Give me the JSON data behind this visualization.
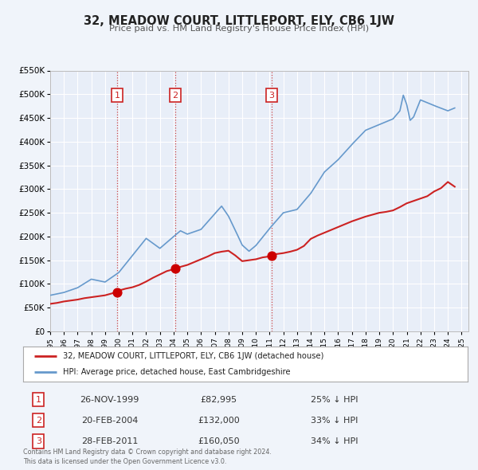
{
  "title": "32, MEADOW COURT, LITTLEPORT, ELY, CB6 1JW",
  "subtitle": "Price paid vs. HM Land Registry's House Price Index (HPI)",
  "background_color": "#f0f4fa",
  "plot_background": "#e8eef8",
  "ylim": [
    0,
    550000
  ],
  "yticks": [
    0,
    50000,
    100000,
    150000,
    200000,
    250000,
    300000,
    350000,
    400000,
    450000,
    500000,
    550000
  ],
  "ytick_labels": [
    "£0",
    "£50K",
    "£100K",
    "£150K",
    "£200K",
    "£250K",
    "£300K",
    "£350K",
    "£400K",
    "£450K",
    "£500K",
    "£550K"
  ],
  "xmin": 1995.0,
  "xmax": 2025.5,
  "hpi_color": "#6699cc",
  "price_color": "#cc2222",
  "sale_marker_color": "#cc0000",
  "sale_dot_size": 60,
  "vline_color": "#cc4444",
  "grid_color": "#ffffff",
  "legend_label_price": "32, MEADOW COURT, LITTLEPORT, ELY, CB6 1JW (detached house)",
  "legend_label_hpi": "HPI: Average price, detached house, East Cambridgeshire",
  "sales": [
    {
      "num": 1,
      "date": 1999.9,
      "price": 82995
    },
    {
      "num": 2,
      "date": 2004.13,
      "price": 132000
    },
    {
      "num": 3,
      "date": 2011.15,
      "price": 160050
    }
  ],
  "sale_labels": [
    {
      "num": 1,
      "date_str": "26-NOV-1999",
      "price_str": "£82,995",
      "discount": "25% ↓ HPI"
    },
    {
      "num": 2,
      "date_str": "20-FEB-2004",
      "price_str": "£132,000",
      "discount": "33% ↓ HPI"
    },
    {
      "num": 3,
      "date_str": "28-FEB-2011",
      "price_str": "£160,050",
      "discount": "34% ↓ HPI"
    }
  ],
  "footer1": "Contains HM Land Registry data © Crown copyright and database right 2024.",
  "footer2": "This data is licensed under the Open Government Licence v3.0.",
  "price_data_x": [
    1995.0,
    1995.5,
    1996.0,
    1996.5,
    1997.0,
    1997.5,
    1998.0,
    1998.5,
    1999.0,
    1999.5,
    1999.9,
    2000.0,
    2000.5,
    2001.0,
    2001.5,
    2002.0,
    2002.5,
    2003.0,
    2003.5,
    2004.0,
    2004.13,
    2004.5,
    2005.0,
    2005.5,
    2006.0,
    2006.5,
    2007.0,
    2007.5,
    2008.0,
    2008.5,
    2009.0,
    2009.5,
    2010.0,
    2010.5,
    2011.0,
    2011.15,
    2011.5,
    2012.0,
    2012.5,
    2013.0,
    2013.5,
    2014.0,
    2014.5,
    2015.0,
    2015.5,
    2016.0,
    2016.5,
    2017.0,
    2017.5,
    2018.0,
    2018.5,
    2019.0,
    2019.5,
    2020.0,
    2020.5,
    2021.0,
    2021.5,
    2022.0,
    2022.5,
    2023.0,
    2023.5,
    2024.0,
    2024.5
  ],
  "price_data_y": [
    58000,
    60000,
    63000,
    65000,
    67000,
    70000,
    72000,
    74000,
    76000,
    80000,
    82995,
    86000,
    90000,
    93000,
    98000,
    105000,
    113000,
    120000,
    127000,
    131000,
    132000,
    136000,
    140000,
    146000,
    152000,
    158000,
    165000,
    168000,
    170000,
    160000,
    148000,
    150000,
    152000,
    156000,
    158000,
    160050,
    163000,
    165000,
    168000,
    172000,
    180000,
    195000,
    202000,
    208000,
    214000,
    220000,
    226000,
    232000,
    237000,
    242000,
    246000,
    250000,
    252000,
    255000,
    262000,
    270000,
    275000,
    280000,
    285000,
    295000,
    302000,
    315000,
    305000
  ]
}
